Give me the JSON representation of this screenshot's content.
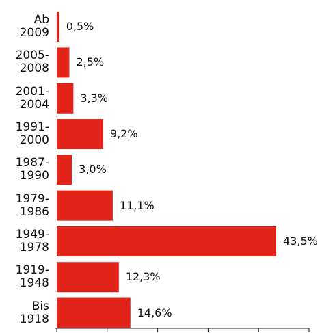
{
  "chart_data": {
    "type": "bar",
    "orientation": "horizontal",
    "categories": [
      "Ab\n2009",
      "2005-\n2008",
      "2001-\n2004",
      "1991-\n2000",
      "1987-\n1990",
      "1979-\n1986",
      "1949-\n1978",
      "1919-\n1948",
      "Bis\n1918"
    ],
    "values": [
      0.5,
      2.5,
      3.3,
      9.2,
      3.0,
      11.1,
      43.5,
      12.3,
      14.6
    ],
    "value_labels": [
      "0,5%",
      "2,5%",
      "3,3%",
      "9,2%",
      "3,0%",
      "11,1%",
      "43,5%",
      "12,3%",
      "14,6%"
    ],
    "color": "#e2231a",
    "xlim": [
      0,
      50
    ],
    "xticks": [
      0,
      10,
      20,
      30,
      40,
      50
    ]
  }
}
